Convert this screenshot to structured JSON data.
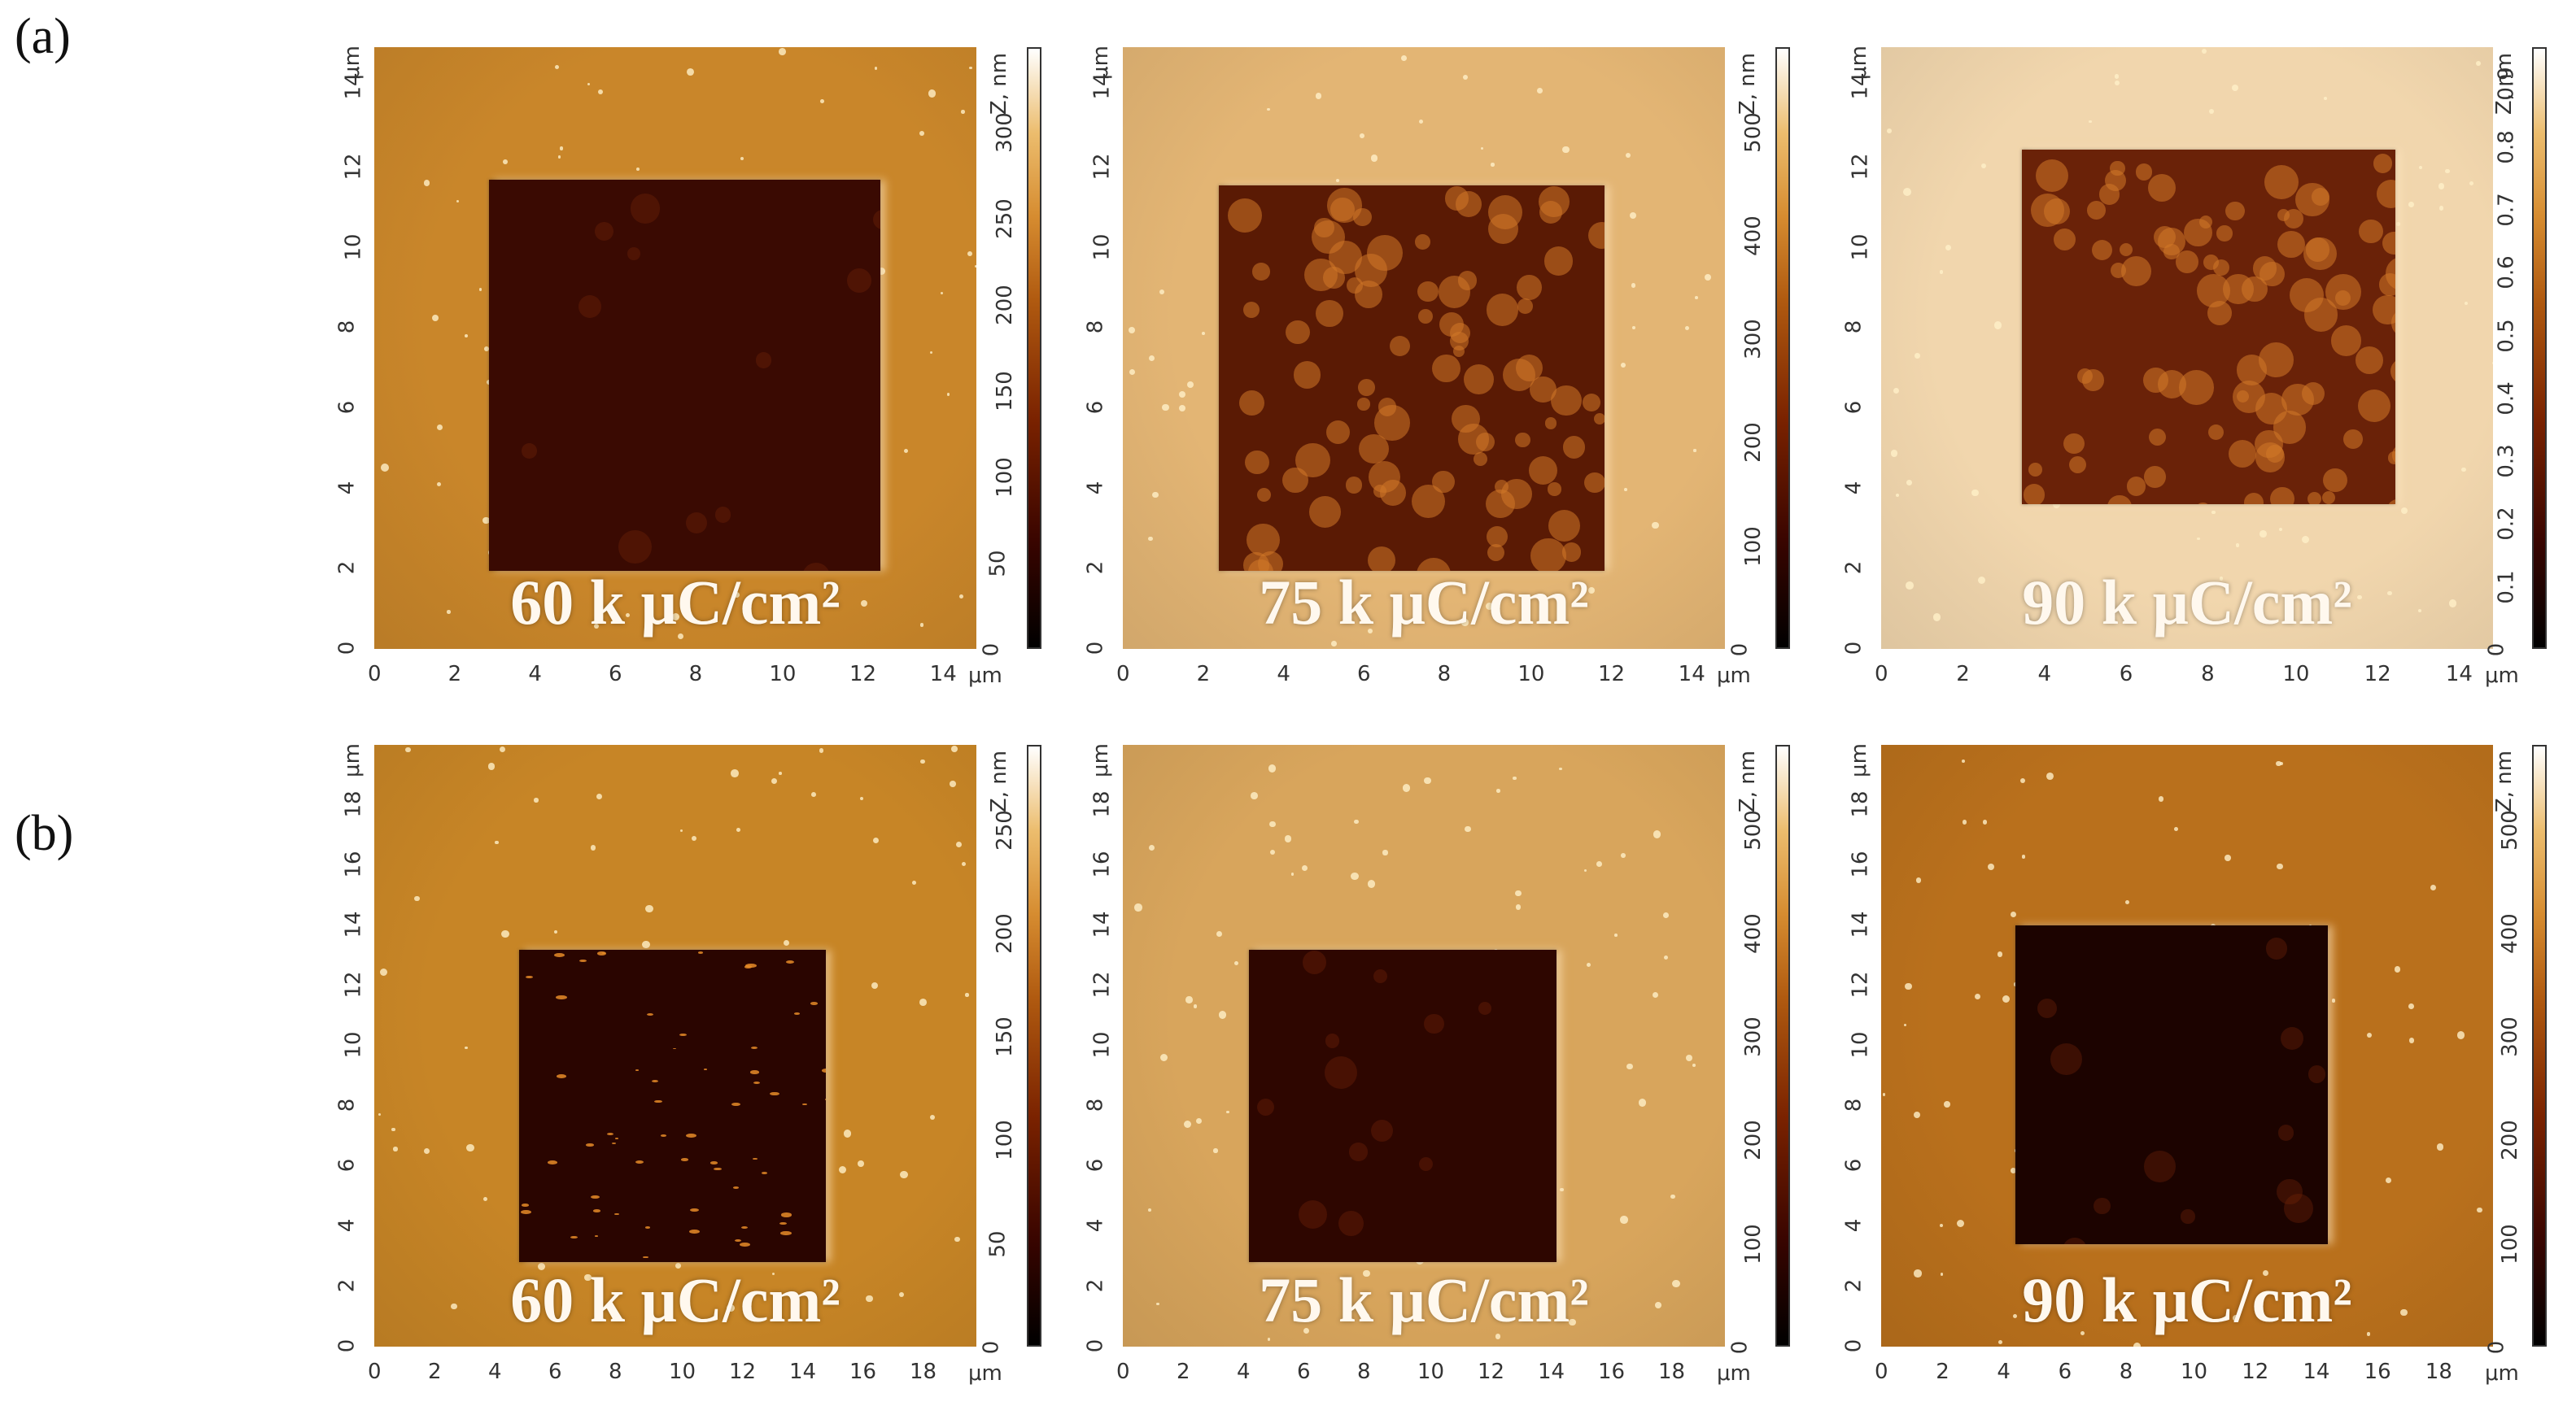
{
  "figure": {
    "row_labels": [
      "(a)",
      "(b)"
    ],
    "panels": [
      {
        "id": "a1",
        "dose": "60 k μC/cm²",
        "x_unit": "μm",
        "y_unit": "μm",
        "z_unit": "Z, nm",
        "x_ticks": [
          "0",
          "2",
          "4",
          "6",
          "8",
          "10",
          "12",
          "14"
        ],
        "y_ticks": [
          "0",
          "2",
          "4",
          "6",
          "8",
          "10",
          "12",
          "14"
        ],
        "z_ticks": [
          "0",
          "50",
          "100",
          "150",
          "200",
          "250",
          "300"
        ],
        "background": "#c9862a",
        "well": "#3a0a02"
      },
      {
        "id": "a2",
        "dose": "75 k μC/cm²",
        "x_unit": "μm",
        "y_unit": "μm",
        "z_unit": "Z, nm",
        "x_ticks": [
          "0",
          "2",
          "4",
          "6",
          "8",
          "10",
          "12",
          "14"
        ],
        "y_ticks": [
          "0",
          "2",
          "4",
          "6",
          "8",
          "10",
          "12",
          "14"
        ],
        "z_ticks": [
          "0",
          "100",
          "200",
          "300",
          "400",
          "500"
        ],
        "background": "#e3b574",
        "well": "#5a1a04"
      },
      {
        "id": "a3",
        "dose": "90 k μC/cm²",
        "x_unit": "μm",
        "y_unit": "μm",
        "z_unit": "Z, nm",
        "x_ticks": [
          "0",
          "2",
          "4",
          "6",
          "8",
          "10",
          "12",
          "14"
        ],
        "y_ticks": [
          "0",
          "2",
          "4",
          "6",
          "8",
          "10",
          "12",
          "14"
        ],
        "z_ticks": [
          "0",
          "0.1",
          "0.2",
          "0.3",
          "0.4",
          "0.5",
          "0.6",
          "0.7",
          "0.8",
          "0.9"
        ],
        "background": "#f1d6ad",
        "well": "#6a2208"
      },
      {
        "id": "b1",
        "dose": "60 k μC/cm²",
        "x_unit": "μm",
        "y_unit": "μm",
        "z_unit": "Z, nm",
        "x_ticks": [
          "0",
          "2",
          "4",
          "6",
          "8",
          "10",
          "12",
          "14",
          "16",
          "18"
        ],
        "y_ticks": [
          "0",
          "2",
          "4",
          "6",
          "8",
          "10",
          "12",
          "14",
          "16",
          "18"
        ],
        "z_ticks": [
          "0",
          "50",
          "100",
          "150",
          "200",
          "250"
        ],
        "background": "#c78526",
        "well": "#2a0500"
      },
      {
        "id": "b2",
        "dose": "75 k μC/cm²",
        "x_unit": "μm",
        "y_unit": "μm",
        "z_unit": "Z, nm",
        "x_ticks": [
          "0",
          "2",
          "4",
          "6",
          "8",
          "10",
          "12",
          "14",
          "16",
          "18"
        ],
        "y_ticks": [
          "0",
          "2",
          "4",
          "6",
          "8",
          "10",
          "12",
          "14",
          "16",
          "18"
        ],
        "z_ticks": [
          "0",
          "100",
          "200",
          "300",
          "400",
          "500"
        ],
        "background": "#d8a55c",
        "well": "#2e0600"
      },
      {
        "id": "b3",
        "dose": "90 k μC/cm²",
        "x_unit": "μm",
        "y_unit": "μm",
        "z_unit": "Z, nm",
        "x_ticks": [
          "0",
          "2",
          "4",
          "6",
          "8",
          "10",
          "12",
          "14",
          "16",
          "18"
        ],
        "y_ticks": [
          "0",
          "2",
          "4",
          "6",
          "8",
          "10",
          "12",
          "14",
          "16",
          "18"
        ],
        "z_ticks": [
          "0",
          "100",
          "200",
          "300",
          "400",
          "500"
        ],
        "background": "#b9701c",
        "well": "#1c0300"
      }
    ]
  }
}
